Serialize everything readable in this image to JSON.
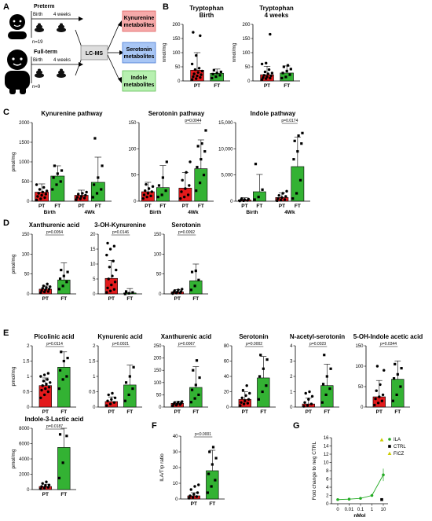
{
  "colors": {
    "pt": "#e31a1c",
    "ft": "#33b233",
    "kyn_box": "#f6aaaa",
    "ser_box": "#a8c6f5",
    "ind_box": "#b7f0b0",
    "lcms_box": "#dddddd",
    "ila": "#22aa22",
    "ficz": "#cccc00"
  },
  "panel_labels": [
    "A",
    "B",
    "C",
    "D",
    "E",
    "F",
    "G"
  ],
  "schematic": {
    "preterm_title": "Preterm",
    "fullterm_title": "Full-term",
    "birth": "Birth",
    "four_weeks": "4 weeks",
    "n_preterm": "n=19",
    "n_fullterm": "n=9",
    "lcms": "LC-MS",
    "kyn_line1": "Kynurenine",
    "kyn_line2": "metabolites",
    "ser_line1": "Serotonin",
    "ser_line2": "metabolites",
    "ind_line1": "Indole",
    "ind_line2": "metabolites",
    "icons": [
      "infant-icon",
      "infant-icon",
      "stool-icon",
      "stool-icon",
      "stool-icon",
      "stool-icon"
    ]
  },
  "chart_data": [
    {
      "id": "B1",
      "panel": "B",
      "type": "bar",
      "title": "Tryptophan\nBirth",
      "ylabel": "nmol/mg",
      "categories": [
        "PT",
        "FT"
      ],
      "ylim": [
        0,
        200
      ],
      "yticks": [
        0,
        50,
        100,
        150,
        200
      ],
      "means": [
        38,
        27
      ],
      "errors": [
        62,
        15
      ],
      "points": [
        [
          5,
          8,
          12,
          15,
          18,
          22,
          25,
          30,
          35,
          40,
          45,
          60,
          90,
          160,
          172
        ],
        [
          10,
          15,
          20,
          24,
          28,
          32,
          38
        ]
      ]
    },
    {
      "id": "B2",
      "panel": "B",
      "type": "bar",
      "title": "Tryptophan\n4 weeks",
      "ylabel": "nmol/mg",
      "categories": [
        "PT",
        "FT"
      ],
      "ylim": [
        0,
        200
      ],
      "yticks": [
        0,
        50,
        100,
        150,
        200
      ],
      "means": [
        22,
        28
      ],
      "errors": [
        30,
        25
      ],
      "points": [
        [
          5,
          8,
          10,
          12,
          15,
          18,
          20,
          25,
          28,
          32,
          40,
          60,
          63,
          165
        ],
        [
          10,
          14,
          22,
          28,
          35,
          42,
          50,
          55
        ]
      ]
    },
    {
      "id": "C1",
      "panel": "C",
      "type": "bar",
      "title": "Kynurenine pathway",
      "ylabel": "pmol/mg",
      "categories": [
        "PT",
        "FT",
        "PT",
        "FT"
      ],
      "groups": [
        "Birth",
        "4Wk"
      ],
      "ylim": [
        0,
        2000
      ],
      "yticks": [
        0,
        500,
        1000,
        1500,
        2000
      ],
      "ytick_labels": [
        "0",
        "500",
        "1000",
        "1500",
        "2000"
      ],
      "means": [
        230,
        640,
        150,
        480
      ],
      "errors": [
        210,
        260,
        130,
        640
      ],
      "points": [
        [
          30,
          60,
          90,
          120,
          150,
          180,
          200,
          230,
          260,
          300,
          350,
          420
        ],
        [
          300,
          420,
          500,
          600,
          700,
          780,
          900
        ],
        [
          40,
          60,
          80,
          100,
          120,
          150,
          180,
          200,
          230
        ],
        [
          100,
          200,
          300,
          420,
          600,
          900,
          1600
        ]
      ]
    },
    {
      "id": "C2",
      "panel": "C",
      "type": "bar",
      "title": "Serotonin pathway",
      "categories": [
        "PT",
        "FT",
        "PT",
        "FT"
      ],
      "groups": [
        "Birth",
        "4Wk"
      ],
      "ylim": [
        0,
        150
      ],
      "yticks": [
        0,
        50,
        100,
        150
      ],
      "ytick_labels": [
        "0",
        "50",
        "100",
        "150"
      ],
      "means": [
        18,
        26,
        25,
        62
      ],
      "errors": [
        18,
        42,
        30,
        55
      ],
      "points": [
        [
          5,
          8,
          10,
          12,
          15,
          18,
          20,
          24,
          28,
          32
        ],
        [
          8,
          12,
          20,
          30,
          45,
          75
        ],
        [
          5,
          8,
          12,
          18,
          24,
          30,
          40,
          55,
          75
        ],
        [
          20,
          35,
          50,
          65,
          80,
          95,
          105,
          110,
          135
        ]
      ],
      "annotations": [
        {
          "pair": [
            2,
            3
          ],
          "text": "p=0.0044"
        }
      ]
    },
    {
      "id": "C3",
      "panel": "C",
      "type": "bar",
      "title": "Indole pathway",
      "categories": [
        "PT",
        "FT",
        "PT",
        "FT"
      ],
      "groups": [
        "Birth",
        "4Wk"
      ],
      "ylim": [
        0,
        15000
      ],
      "yticks": [
        0,
        5000,
        10000,
        15000
      ],
      "ytick_labels": [
        "0",
        "5,000",
        "10,000",
        "15,000"
      ],
      "means": [
        250,
        1800,
        700,
        6600
      ],
      "errors": [
        400,
        3300,
        900,
        5600
      ],
      "points": [
        [
          50,
          100,
          150,
          200,
          300,
          400,
          500
        ],
        [
          300,
          800,
          2200,
          7100
        ],
        [
          100,
          200,
          300,
          500,
          700,
          900,
          1100,
          1500,
          1900
        ],
        [
          500,
          1500,
          4000,
          8000,
          9500,
          11000,
          11500,
          12500,
          13000
        ]
      ],
      "annotations": [
        {
          "pair": [
            2,
            3
          ],
          "text": "p=0.0174"
        }
      ]
    },
    {
      "id": "D1",
      "panel": "D",
      "type": "bar",
      "title": "Xanthurenic acid",
      "ylabel": "pmol/mg",
      "categories": [
        "PT",
        "FT"
      ],
      "ylim": [
        0,
        150
      ],
      "yticks": [
        0,
        50,
        100,
        150
      ],
      "means": [
        12,
        35
      ],
      "errors": [
        8,
        43
      ],
      "points": [
        [
          3,
          5,
          6,
          8,
          10,
          12,
          14,
          16,
          18,
          20,
          25
        ],
        [
          12,
          20,
          30,
          38,
          45,
          55,
          60
        ]
      ],
      "annotations": [
        {
          "pair": [
            0,
            1
          ],
          "text": "p=0.0054"
        }
      ]
    },
    {
      "id": "D2",
      "panel": "D",
      "type": "bar",
      "title": "3-OH-Kynurenine",
      "categories": [
        "PT",
        "FT"
      ],
      "ylim": [
        0,
        20
      ],
      "yticks": [
        0,
        5,
        10,
        15,
        20
      ],
      "means": [
        5.2,
        0.3
      ],
      "errors": [
        6,
        1.5
      ],
      "points": [
        [
          0.5,
          1,
          1.5,
          2,
          3,
          4,
          5,
          6,
          8,
          9,
          11,
          13,
          15,
          16,
          17
        ],
        [
          0,
          0.2,
          0.5,
          0.8
        ]
      ],
      "annotations": [
        {
          "pair": [
            0,
            1
          ],
          "text": "p=0.0146"
        }
      ]
    },
    {
      "id": "D3",
      "panel": "D",
      "type": "bar",
      "title": "Serotonin",
      "categories": [
        "PT",
        "FT"
      ],
      "ylim": [
        0,
        150
      ],
      "yticks": [
        0,
        50,
        100,
        150
      ],
      "means": [
        5,
        33
      ],
      "errors": [
        6,
        42
      ],
      "points": [
        [
          1,
          2,
          3,
          4,
          5,
          6,
          8,
          10,
          12
        ],
        [
          10,
          20,
          35,
          55,
          58
        ]
      ],
      "annotations": [
        {
          "pair": [
            0,
            1
          ],
          "text": "p=0.0092"
        }
      ]
    },
    {
      "id": "E1",
      "panel": "E",
      "type": "bar",
      "title": "Picolinic acid",
      "ylabel": "pmol/mg",
      "categories": [
        "PT",
        "FT"
      ],
      "ylim": [
        0,
        2.0
      ],
      "yticks": [
        0,
        0.5,
        1.0,
        1.5,
        2.0
      ],
      "means": [
        0.7,
        1.3
      ],
      "errors": [
        0.25,
        0.5
      ],
      "points": [
        [
          0.3,
          0.4,
          0.5,
          0.55,
          0.6,
          0.65,
          0.7,
          0.75,
          0.8,
          0.85,
          0.9,
          1.0,
          1.05,
          1.1
        ],
        [
          0.6,
          0.9,
          1.0,
          1.2,
          1.5,
          1.6,
          1.8
        ]
      ],
      "annotations": [
        {
          "pair": [
            0,
            1
          ],
          "text": "p=0.0114"
        }
      ]
    },
    {
      "id": "E2",
      "panel": "E",
      "type": "bar",
      "title": "Kynurenic acid",
      "categories": [
        "PT",
        "FT"
      ],
      "ylim": [
        0,
        2.0
      ],
      "yticks": [
        0,
        0.5,
        1.0,
        1.5,
        2.0
      ],
      "means": [
        0.18,
        0.72
      ],
      "errors": [
        0.15,
        0.65
      ],
      "points": [
        [
          0.05,
          0.1,
          0.15,
          0.2,
          0.25,
          0.3,
          0.4,
          0.45
        ],
        [
          0.2,
          0.4,
          0.6,
          0.8,
          1.0,
          1.3
        ]
      ],
      "annotations": [
        {
          "pair": [
            0,
            1
          ],
          "text": "p=0.0021"
        }
      ]
    },
    {
      "id": "E3",
      "panel": "E",
      "type": "bar",
      "title": "Xanthurenic acid",
      "categories": [
        "PT",
        "FT"
      ],
      "ylim": [
        0,
        250
      ],
      "yticks": [
        0,
        50,
        100,
        150,
        200,
        250
      ],
      "means": [
        15,
        80
      ],
      "errors": [
        8,
        85
      ],
      "points": [
        [
          5,
          8,
          10,
          12,
          14,
          16,
          18,
          20,
          22
        ],
        [
          20,
          35,
          50,
          70,
          90,
          120,
          150,
          190
        ]
      ],
      "annotations": [
        {
          "pair": [
            0,
            1
          ],
          "text": "p=0.0067"
        }
      ]
    },
    {
      "id": "E4",
      "panel": "E",
      "type": "bar",
      "title": "Serotonin",
      "categories": [
        "PT",
        "FT"
      ],
      "ylim": [
        0,
        80
      ],
      "yticks": [
        0,
        20,
        40,
        60,
        80
      ],
      "means": [
        10,
        38
      ],
      "errors": [
        10,
        28
      ],
      "points": [
        [
          2,
          4,
          5,
          6,
          8,
          10,
          12,
          15,
          18,
          22,
          28
        ],
        [
          10,
          20,
          28,
          40,
          50,
          62,
          68
        ]
      ],
      "annotations": [
        {
          "pair": [
            0,
            1
          ],
          "text": "p=0.0002"
        }
      ]
    },
    {
      "id": "E5",
      "panel": "E",
      "type": "bar",
      "title": "N-acetyl-serotonin",
      "categories": [
        "PT",
        "FT"
      ],
      "ylim": [
        0,
        4
      ],
      "yticks": [
        0,
        1,
        2,
        3,
        4
      ],
      "means": [
        0.2,
        1.4
      ],
      "errors": [
        0.4,
        1.4
      ],
      "points": [
        [
          0.05,
          0.1,
          0.2,
          0.3,
          0.5,
          0.7,
          0.9,
          1.0
        ],
        [
          0.3,
          0.8,
          1.2,
          1.5,
          2.0,
          2.5,
          3.4
        ]
      ],
      "annotations": [
        {
          "pair": [
            0,
            1
          ],
          "text": "p=0.0023"
        }
      ]
    },
    {
      "id": "E6",
      "panel": "E",
      "type": "bar",
      "title": "5-OH-Indole acetic acid",
      "categories": [
        "PT",
        "FT"
      ],
      "ylim": [
        0,
        150
      ],
      "yticks": [
        0,
        50,
        100,
        150
      ],
      "means": [
        25,
        68
      ],
      "errors": [
        40,
        45
      ],
      "points": [
        [
          5,
          10,
          15,
          20,
          25,
          30,
          40,
          55,
          90,
          100
        ],
        [
          15,
          30,
          50,
          70,
          80,
          95,
          105
        ]
      ],
      "annotations": [
        {
          "pair": [
            0,
            1
          ],
          "text": "p=0.0344"
        }
      ]
    },
    {
      "id": "E7",
      "panel": "E",
      "type": "bar",
      "title": "Indole-3-Lactic acid",
      "ylabel": "pmol/mg",
      "categories": [
        "PT",
        "FT"
      ],
      "ylim": [
        0,
        8000
      ],
      "yticks": [
        0,
        2000,
        4000,
        6000,
        8000
      ],
      "means": [
        400,
        5500
      ],
      "errors": [
        300,
        3700
      ],
      "points": [
        [
          100,
          200,
          300,
          400,
          500,
          600,
          800,
          1000
        ],
        [
          1500,
          3500,
          7000,
          7200
        ]
      ],
      "annotations": [
        {
          "pair": [
            0,
            1
          ],
          "text": "p=0.0187"
        }
      ]
    },
    {
      "id": "F",
      "panel": "F",
      "type": "bar",
      "ylabel": "ILA/Trp ratio",
      "categories": [
        "PT",
        "FT"
      ],
      "ylim": [
        0,
        40
      ],
      "yticks": [
        0,
        10,
        20,
        30,
        40
      ],
      "means": [
        2,
        18
      ],
      "errors": [
        2,
        13
      ],
      "points": [
        [
          0.5,
          1,
          1.5,
          2,
          3,
          4,
          6,
          8,
          9
        ],
        [
          4,
          8,
          12,
          16,
          22,
          26,
          30,
          33
        ]
      ],
      "annotations": [
        {
          "pair": [
            0,
            1
          ],
          "text": "p<0.0001"
        }
      ]
    },
    {
      "id": "G",
      "panel": "G",
      "type": "line",
      "ylabel": "Fold change to neg CTRL",
      "xlabel": "nMol",
      "xticks": [
        "0",
        "0.01",
        "0.1",
        "1",
        "10"
      ],
      "ylim": [
        0,
        16
      ],
      "yticks": [
        0,
        2,
        4,
        6,
        8,
        10,
        12,
        14,
        16
      ],
      "legend": [
        "ILA",
        "CTRL",
        "FICZ"
      ],
      "ila": [
        1,
        1.1,
        1.3,
        2,
        7
      ],
      "ila_err": [
        0,
        0,
        0.1,
        0.3,
        1.5
      ],
      "ctrl_value": 1,
      "ficz_value": 15.5
    }
  ]
}
